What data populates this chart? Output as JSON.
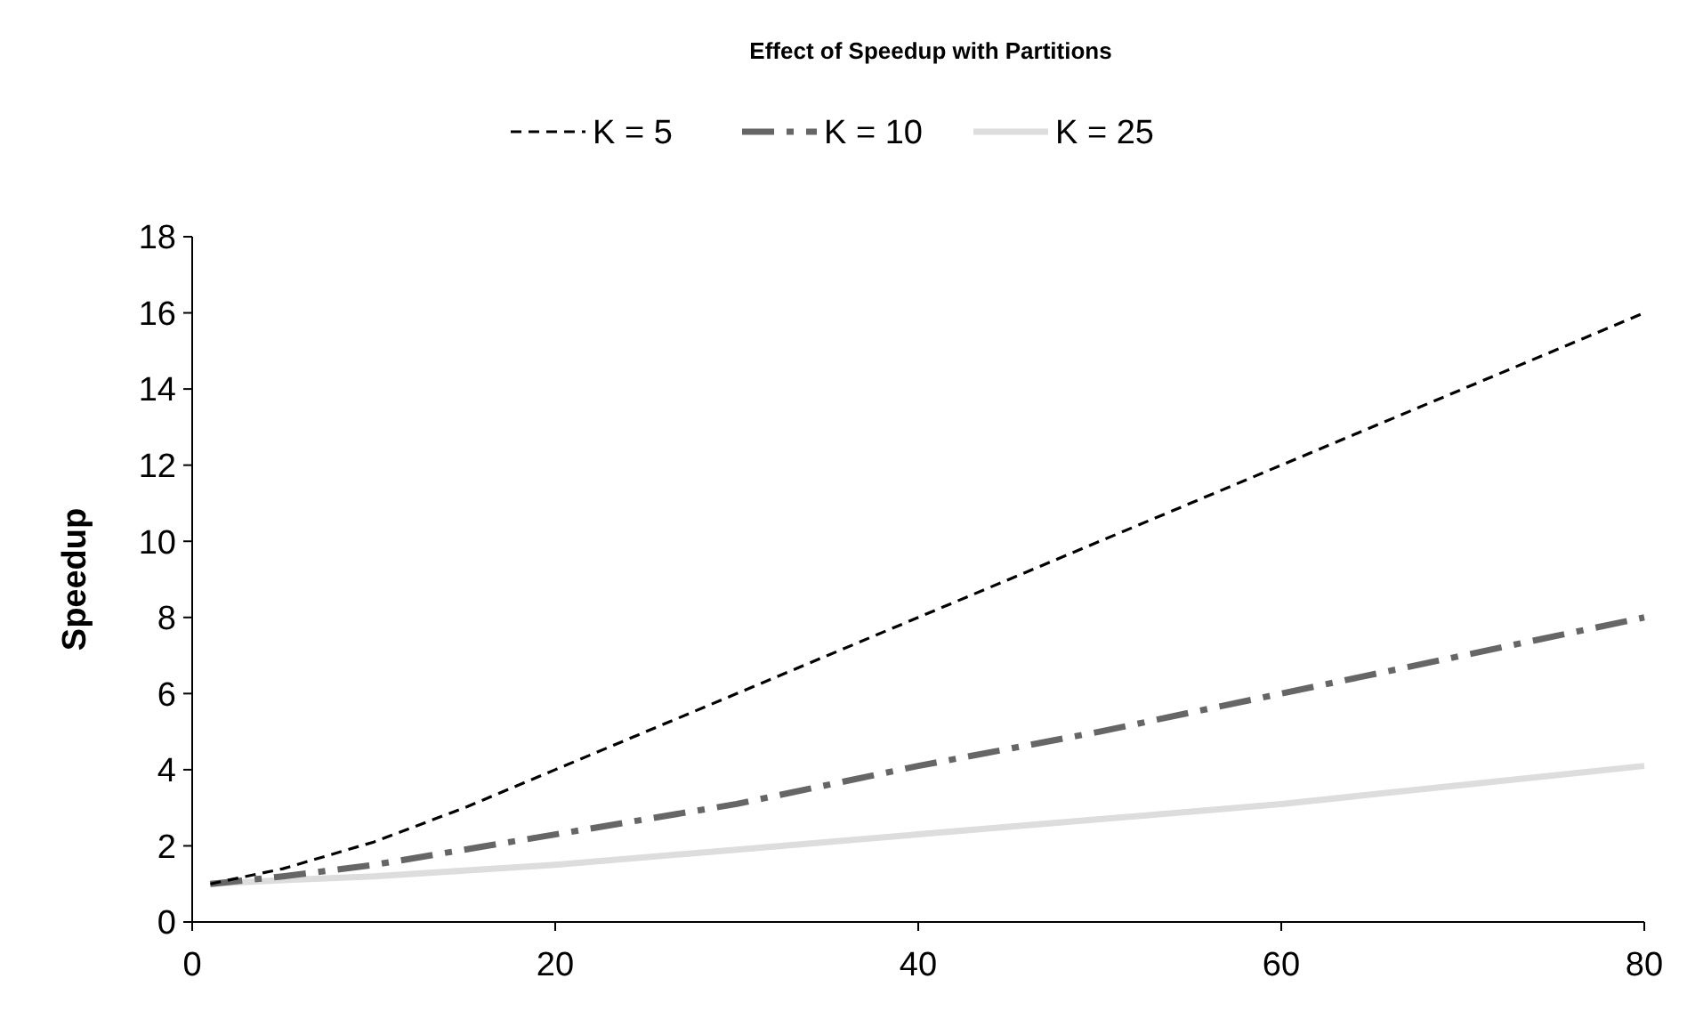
{
  "chart_data": {
    "type": "line",
    "title": "Effect of Speedup with Partitions",
    "ylabel": "Speedup",
    "x": [
      1,
      5,
      10,
      15,
      20,
      30,
      40,
      50,
      60,
      70,
      80
    ],
    "series": [
      {
        "name": "K = 5",
        "color": "#000000",
        "line_style": "dashed",
        "values": [
          1,
          1.4,
          2.1,
          3,
          4,
          6,
          8,
          10,
          12,
          14,
          16
        ]
      },
      {
        "name": "K = 10",
        "color": "#666666",
        "line_style": "dashed",
        "values": [
          1,
          1.2,
          1.5,
          1.9,
          2.3,
          3.1,
          4.1,
          5,
          6,
          7,
          8
        ]
      },
      {
        "name": "K = 25",
        "color": "#dddddd",
        "line_style": "solid",
        "values": [
          1,
          1.1,
          1.2,
          1.35,
          1.5,
          1.9,
          2.3,
          2.7,
          3.1,
          3.6,
          4.1
        ]
      }
    ],
    "xlim": [
      0,
      80
    ],
    "xticks": [
      0,
      20,
      40,
      60,
      80
    ],
    "ylim": [
      0,
      18
    ],
    "yticks": [
      0,
      2,
      4,
      6,
      8,
      10,
      12,
      14,
      16,
      18
    ],
    "legend": "top",
    "grid": false
  }
}
